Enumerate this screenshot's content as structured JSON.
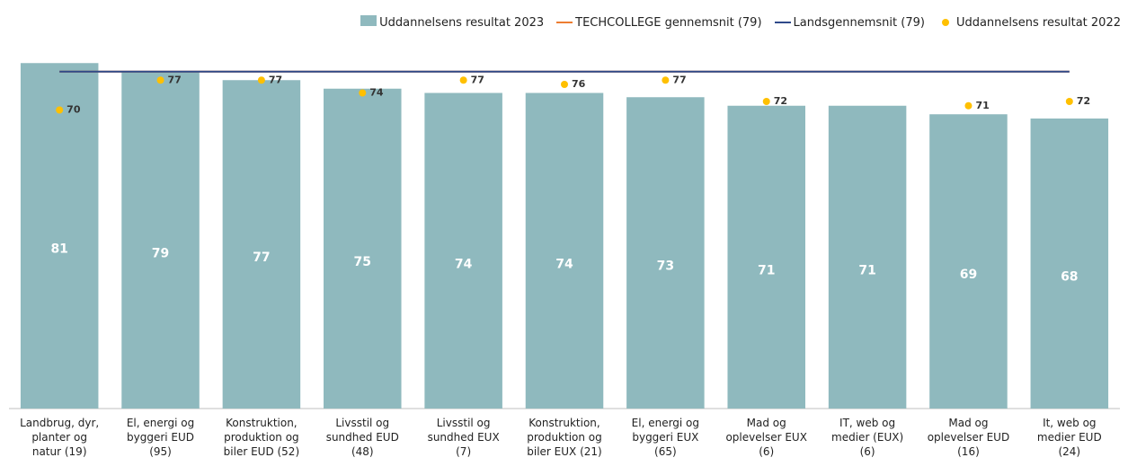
{
  "chart_data": {
    "type": "bar",
    "categories": [
      "Landbrug, dyr,\nplanter og\nnatur (19)",
      "El, energi og\nbyggeri EUD\n(95)",
      "Konstruktion,\nproduktion og\nbiler EUD (52)",
      "Livsstil og\nsundhed EUD\n(48)",
      "Livsstil og\nsundhed EUX\n(7)",
      "Konstruktion,\nproduktion og\nbiler EUX (21)",
      "El, energi og\nbyggeri EUX\n(65)",
      "Mad og\noplevelser EUX\n(6)",
      "IT, web og\nmedier (EUX)\n(6)",
      "Mad og\noplevelser EUD\n(16)",
      "It, web og\nmedier EUD\n(24)"
    ],
    "series": [
      {
        "name": "Uddannelsens resultat 2023",
        "color": "#8fb9be",
        "values": [
          81,
          79,
          77,
          75,
          74,
          74,
          73,
          71,
          71,
          69,
          68
        ]
      },
      {
        "name": "Uddannelsens resultat 2022",
        "color": "#ffc000",
        "values": [
          70,
          77,
          77,
          74,
          77,
          76,
          77,
          72,
          null,
          71,
          72
        ]
      }
    ],
    "reference_lines": [
      {
        "name": "TECHCOLLEGE gennemsnit (79)",
        "color": "#ed7d31",
        "value": 79
      },
      {
        "name": "Landsgennemsnit (79)",
        "color": "#2f4a8a",
        "value": 79
      }
    ],
    "ylim": [
      0,
      84
    ]
  }
}
